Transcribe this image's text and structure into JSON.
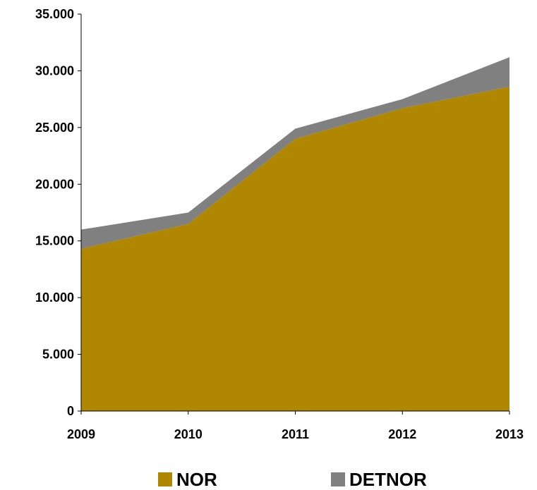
{
  "chart_data": {
    "type": "area",
    "stacked": true,
    "title": "",
    "xlabel": "",
    "ylabel": "",
    "x": [
      "2009",
      "2010",
      "2011",
      "2012",
      "2013"
    ],
    "ylim": [
      0,
      35000
    ],
    "yticks": [
      "0",
      "5.000",
      "10.000",
      "15.000",
      "20.000",
      "25.000",
      "30.000",
      "35.000"
    ],
    "series": [
      {
        "name": "NOR",
        "values": [
          14300,
          16500,
          24000,
          26700,
          28600
        ],
        "color": "#AF8700"
      },
      {
        "name": "DETNOR",
        "values": [
          1700,
          1000,
          900,
          800,
          2600
        ],
        "color": "#808080"
      }
    ],
    "grid": false,
    "legend_position": "bottom"
  }
}
